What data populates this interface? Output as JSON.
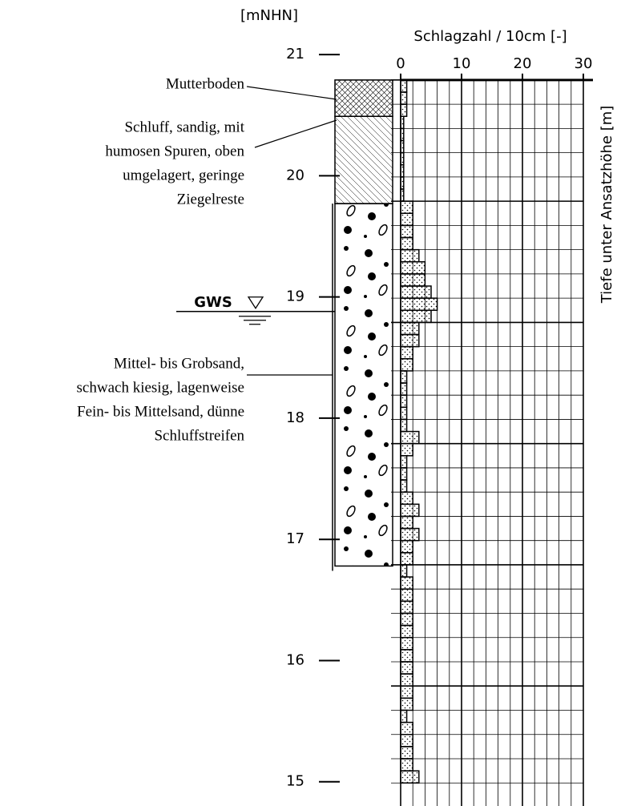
{
  "chart_data": {
    "type": "probing-log",
    "elevation_label": "[mNHN]",
    "ylim": [
      14.8,
      21.45
    ],
    "yticks": [
      15,
      16,
      17,
      18,
      19,
      20,
      21
    ],
    "x_label": "Schlagzahl / 10cm [-]",
    "xlim": [
      0,
      30
    ],
    "xticks": [
      0,
      10,
      20,
      30
    ],
    "depth_label": "Tiefe unter Ansatzhöhe [m]",
    "probe_top": 20.79,
    "segment": 0.1,
    "values": [
      1,
      1,
      1,
      0.5,
      0.5,
      0.5,
      0.5,
      0.5,
      0.5,
      0.5,
      2,
      2,
      2,
      2,
      3,
      4,
      4,
      5,
      6,
      5,
      3,
      3,
      2,
      2,
      1,
      1,
      1,
      1,
      1,
      3,
      2,
      1,
      1,
      1,
      2,
      3,
      2,
      3,
      2,
      2,
      1,
      2,
      2,
      2,
      2,
      2,
      2,
      2,
      2,
      2,
      2,
      2,
      1,
      2,
      2,
      2,
      2,
      3
    ],
    "groundwater": {
      "label": "GWS",
      "value": 18.88
    },
    "layers": [
      {
        "label": [
          "Mutterboden"
        ],
        "top": 20.79,
        "bottom": 20.49
      },
      {
        "label": [
          "Schluff, sandig, mit",
          "humosen Spuren, oben",
          "umgelagert, geringe",
          "Ziegelreste"
        ],
        "top": 20.49,
        "bottom": 19.77
      },
      {
        "label": [
          "Mittel- bis Grobsand,",
          "schwach kiesig, lagenweise",
          "Fein- bis Mittelsand, dünne",
          "Schluffstreifen"
        ],
        "top": 19.77,
        "bottom": 16.78
      }
    ]
  }
}
